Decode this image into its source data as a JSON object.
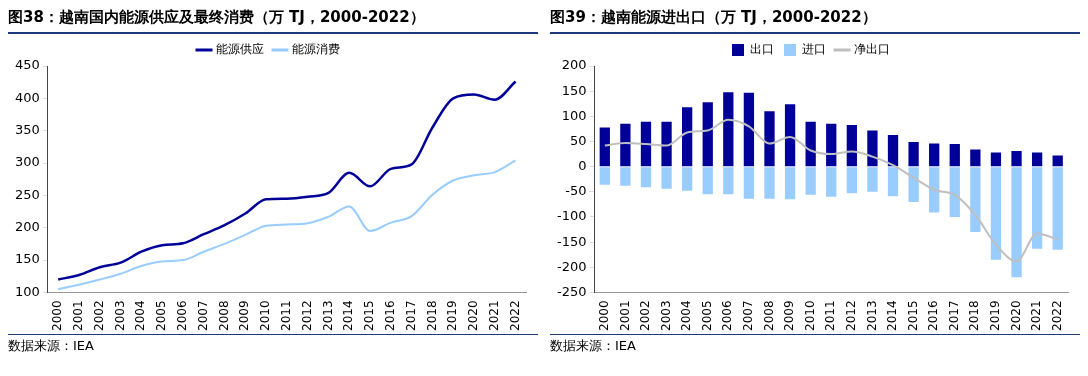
{
  "chart_data": [
    {
      "type": "line",
      "title": "图38：越南国内能源供应及最终消费（万 TJ，2000-2022）",
      "categories": [
        "2000",
        "2001",
        "2002",
        "2003",
        "2004",
        "2005",
        "2006",
        "2007",
        "2008",
        "2009",
        "2010",
        "2011",
        "2012",
        "2013",
        "2014",
        "2015",
        "2016",
        "2017",
        "2018",
        "2019",
        "2020",
        "2021",
        "2022"
      ],
      "series": [
        {
          "name": "能源供应",
          "color": "#000099",
          "values": [
            120,
            127,
            139,
            146,
            163,
            173,
            176,
            190,
            204,
            222,
            244,
            245,
            248,
            254,
            285,
            264,
            291,
            298,
            355,
            400,
            406,
            398,
            426
          ]
        },
        {
          "name": "能源消费",
          "color": "#99ccff",
          "values": [
            105,
            112,
            120,
            129,
            141,
            148,
            150,
            163,
            175,
            189,
            203,
            205,
            207,
            217,
            233,
            195,
            208,
            218,
            251,
            273,
            281,
            286,
            304
          ]
        }
      ],
      "ylim": [
        100,
        450
      ],
      "yticks": [
        100,
        150,
        200,
        250,
        300,
        350,
        400,
        450
      ],
      "grid": false,
      "legend": "top",
      "marker": "none",
      "annotations": [
        "数据来源：IEA"
      ]
    },
    {
      "type": "bar",
      "title": "图39：越南能源进出口（万 TJ，2000-2022）",
      "categories": [
        "2000",
        "2001",
        "2002",
        "2003",
        "2004",
        "2005",
        "2006",
        "2007",
        "2008",
        "2009",
        "2010",
        "2011",
        "2012",
        "2013",
        "2014",
        "2015",
        "2016",
        "2017",
        "2018",
        "2019",
        "2020",
        "2021",
        "2022"
      ],
      "series": [
        {
          "name": "出口",
          "color": "#000099",
          "values": [
            78,
            85,
            89,
            89,
            118,
            128,
            148,
            147,
            110,
            124,
            89,
            85,
            83,
            72,
            63,
            49,
            46,
            45,
            34,
            28,
            31,
            28,
            22
          ]
        },
        {
          "name": "进口",
          "color": "#99ccff",
          "values": [
            -36,
            -38,
            -41,
            -44,
            -48,
            -55,
            -55,
            -64,
            -64,
            -65,
            -56,
            -60,
            -53,
            -50,
            -59,
            -70,
            -91,
            -100,
            -130,
            -185,
            -220,
            -163,
            -165
          ]
        },
        {
          "name": "净出口",
          "type": "line",
          "color": "#bfbfbf",
          "values": [
            42,
            47,
            45,
            42,
            68,
            72,
            93,
            80,
            46,
            59,
            32,
            25,
            30,
            20,
            3,
            -22,
            -46,
            -56,
            -96,
            -155,
            -188,
            -133,
            -145
          ]
        }
      ],
      "stacked": true,
      "ylim": [
        -250,
        200
      ],
      "yticks": [
        -250,
        -200,
        -150,
        -100,
        -50,
        0,
        50,
        100,
        150,
        200
      ],
      "grid": false,
      "legend": "top",
      "marker": "none",
      "annotations": [
        "数据来源：IEA"
      ]
    }
  ]
}
